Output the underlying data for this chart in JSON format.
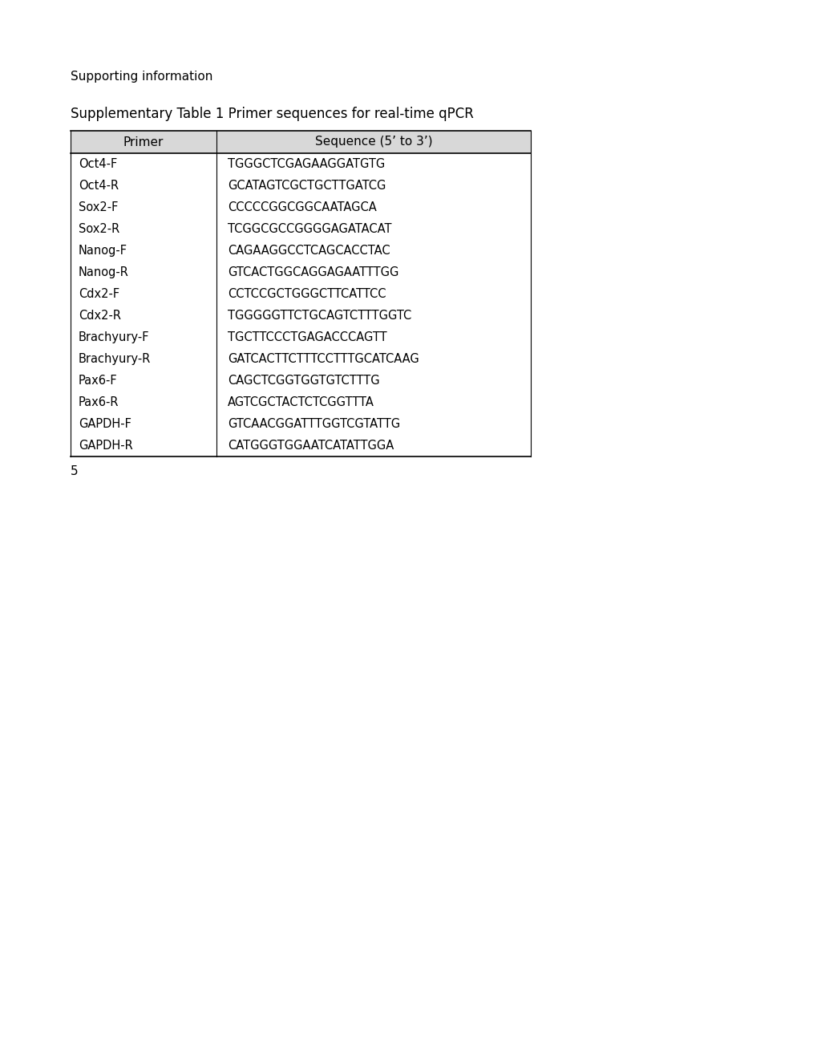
{
  "supporting_info": "Supporting information",
  "table_title": "Supplementary Table 1 Primer sequences for real-time qPCR",
  "col_headers": [
    "Primer",
    "Sequence (5’ to 3’)"
  ],
  "rows": [
    [
      "Oct4-F",
      "TGGGCTCGAGAAGGATGTG"
    ],
    [
      "Oct4-R",
      "GCATAGTCGCTGCTTGATCG"
    ],
    [
      "Sox2-F",
      "CCCCCGGCGGCAATAGCA"
    ],
    [
      "Sox2-R",
      "TCGGCGCCGGGGAGATACAT"
    ],
    [
      "Nanog-F",
      "CAGAAGGCCTCAGCACCTAC"
    ],
    [
      "Nanog-R",
      "GTCACTGGCAGGAGAATTTGG"
    ],
    [
      "Cdx2-F",
      "CCTCCGCTGGGCTTCATTCC"
    ],
    [
      "Cdx2-R",
      "TGGGGGTTCTGCAGTCTTTGGTC"
    ],
    [
      "Brachyury-F",
      "TGCTTCCCTGAGACCCAGTT"
    ],
    [
      "Brachyury-R",
      "GATCACTTCTTTCCTTTGCATCAAG"
    ],
    [
      "Pax6-F",
      "CAGCTCGGTGGTGTCTTTG"
    ],
    [
      "Pax6-R",
      "AGTCGCTACTCTCGGTTTA"
    ],
    [
      "GAPDH-F",
      "GTCAACGGATTTGGTCGTATTG"
    ],
    [
      "GAPDH-R",
      "CATGGGTGGAATCATATTGGA"
    ]
  ],
  "background_color": "#ffffff",
  "text_color": "#000000",
  "page_number": "5",
  "supporting_info_fontsize": 11,
  "title_fontsize": 12,
  "header_fontsize": 11,
  "body_fontsize": 10.5,
  "page_num_fontsize": 11
}
